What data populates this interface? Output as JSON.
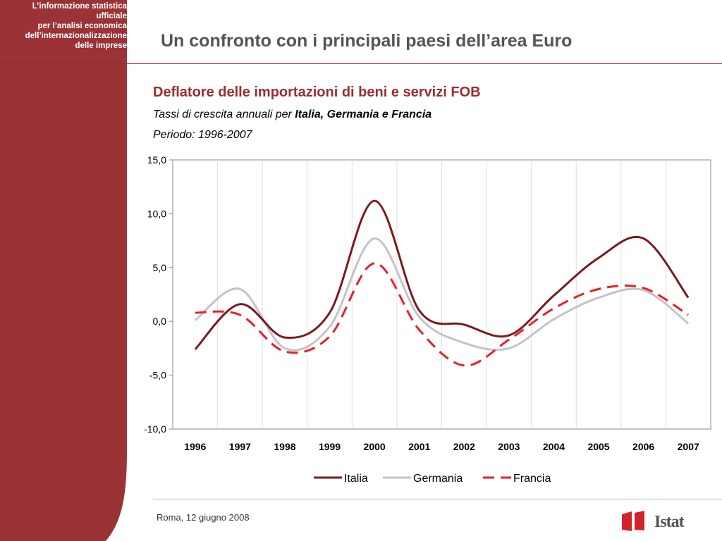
{
  "sidebar": {
    "lines": [
      "L’informazione statistica",
      "ufficiale",
      "per l’analisi economica",
      "dell’internazionalizzazione",
      "delle imprese"
    ]
  },
  "header": {
    "title": "Un confronto con i principali paesi dell’area Euro"
  },
  "subheader": {
    "subtitle_prefix": "Tassi di crescita annuali per ",
    "subtitle_emphasis": "Italia, Germania e Francia",
    "period": "Periodo: 1996-2007"
  },
  "footer": {
    "date": "Roma, 12 giugno 2008",
    "logo_text": "Istat"
  },
  "colors": {
    "brand": "#9b2d30",
    "sidebar_bg": "#9b3236",
    "italia": "#7b1a1e",
    "germania": "#c4c4c4",
    "francia": "#e8202a"
  },
  "chart_data": {
    "type": "line",
    "title": "Deflatore delle importazioni di beni e servizi FOB",
    "xlabel": "",
    "ylabel": "",
    "categories": [
      "1996",
      "1997",
      "1998",
      "1999",
      "2000",
      "2001",
      "2002",
      "2003",
      "2004",
      "2005",
      "2006",
      "2007"
    ],
    "ylim": [
      -10,
      15
    ],
    "yticks": [
      15,
      10,
      5,
      0,
      -5,
      -10
    ],
    "ytick_labels": [
      "15,0",
      "10,0",
      "5,0",
      "0,0",
      "-5,0",
      "-10,0"
    ],
    "grid": "vertical",
    "legend_position": "bottom",
    "series": [
      {
        "name": "Italia",
        "values": [
          -2.6,
          1.6,
          -1.5,
          0.8,
          11.2,
          1.0,
          -0.3,
          -1.3,
          2.4,
          5.9,
          7.7,
          2.2
        ]
      },
      {
        "name": "Germania",
        "values": [
          0.1,
          3.0,
          -2.5,
          -0.5,
          7.7,
          0.4,
          -2.0,
          -2.5,
          0.2,
          2.2,
          2.9,
          -0.2
        ]
      },
      {
        "name": "Francia",
        "values": [
          0.8,
          0.6,
          -2.8,
          -1.4,
          5.4,
          -0.8,
          -4.1,
          -1.7,
          1.2,
          3.0,
          3.1,
          0.6
        ]
      }
    ]
  }
}
